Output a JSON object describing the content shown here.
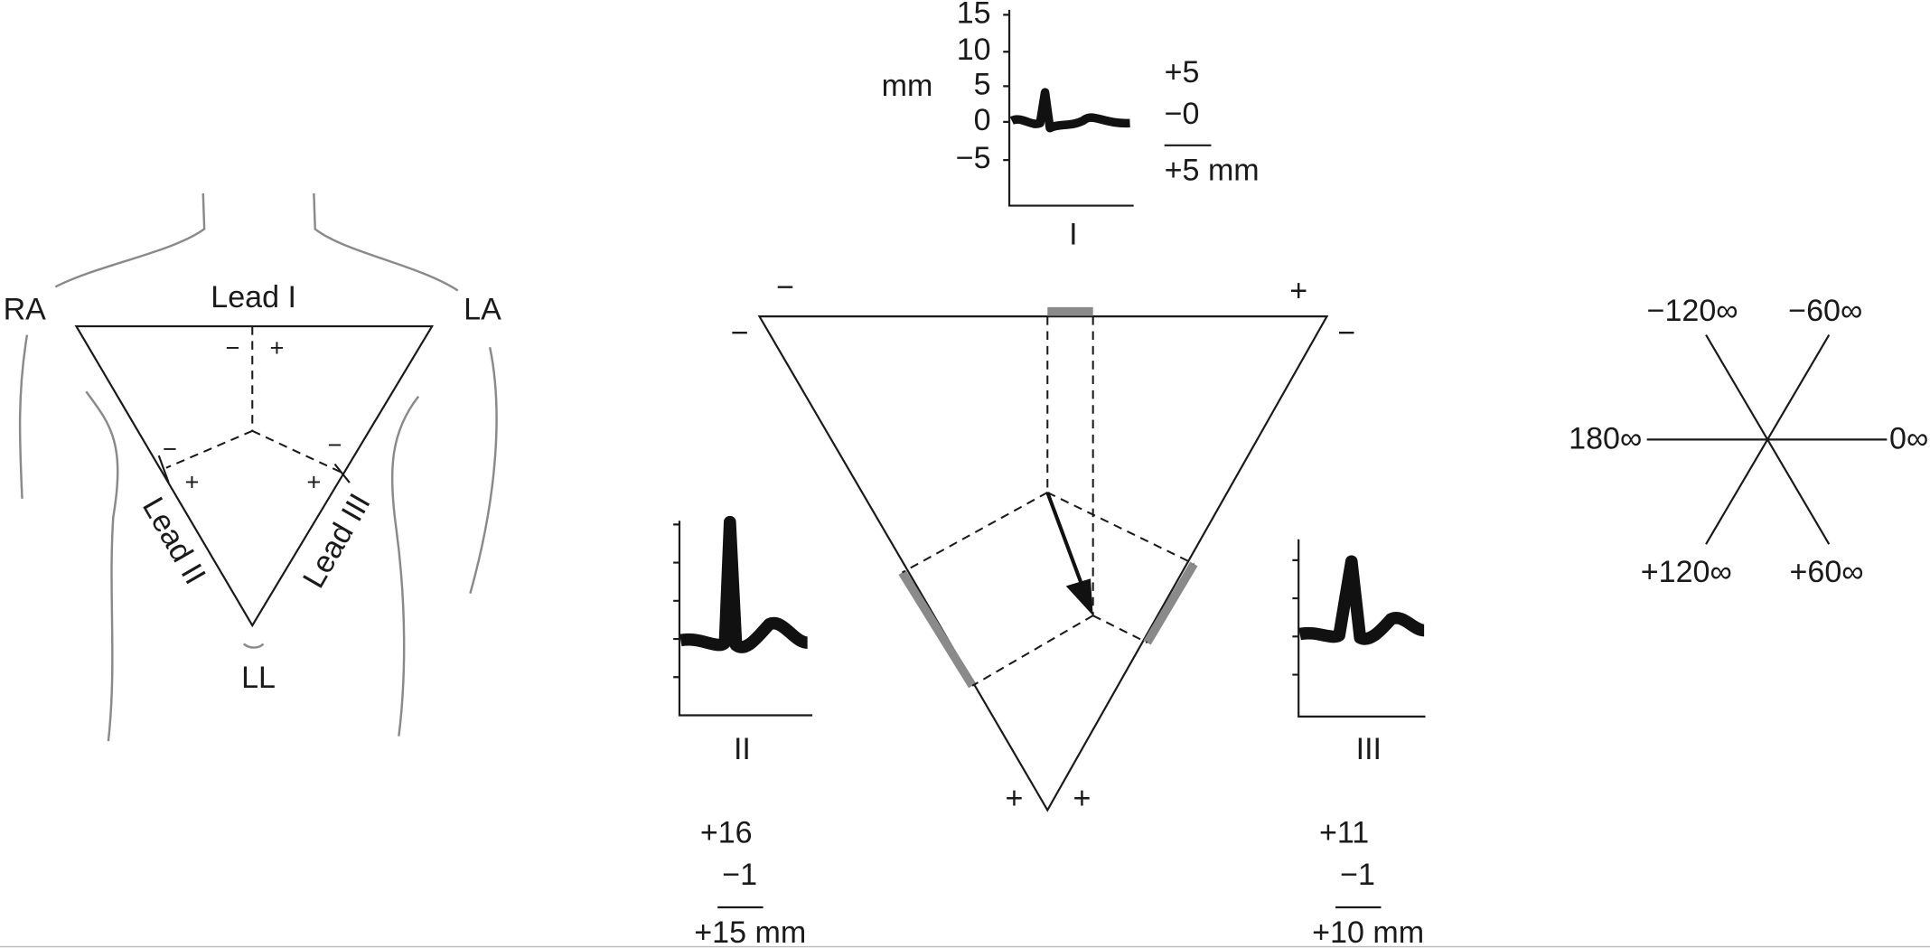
{
  "torso": {
    "electrodes": [
      "RA",
      "LA",
      "LL"
    ],
    "leads": [
      "Lead I",
      "Lead II",
      "Lead III"
    ],
    "signs": [
      "−",
      "+",
      "−",
      "+",
      "−",
      "+"
    ]
  },
  "triangle": {
    "signs": [
      "−",
      "+",
      "−",
      "−",
      "+",
      "+"
    ]
  },
  "lead_I": {
    "name": "I",
    "unit": "mm",
    "ticks": [
      "15",
      "10",
      "5",
      "0",
      "−5"
    ],
    "sum": [
      "+5",
      "−0",
      "+5 mm"
    ]
  },
  "lead_II": {
    "name": "II",
    "sum": [
      "+16",
      "−1",
      "+15 mm"
    ]
  },
  "lead_III": {
    "name": "III",
    "sum": [
      "+11",
      "−1",
      "+10 mm"
    ]
  },
  "axes": [
    "−120∞",
    "−60∞",
    "180∞",
    "0∞",
    "+120∞",
    "+60∞"
  ]
}
